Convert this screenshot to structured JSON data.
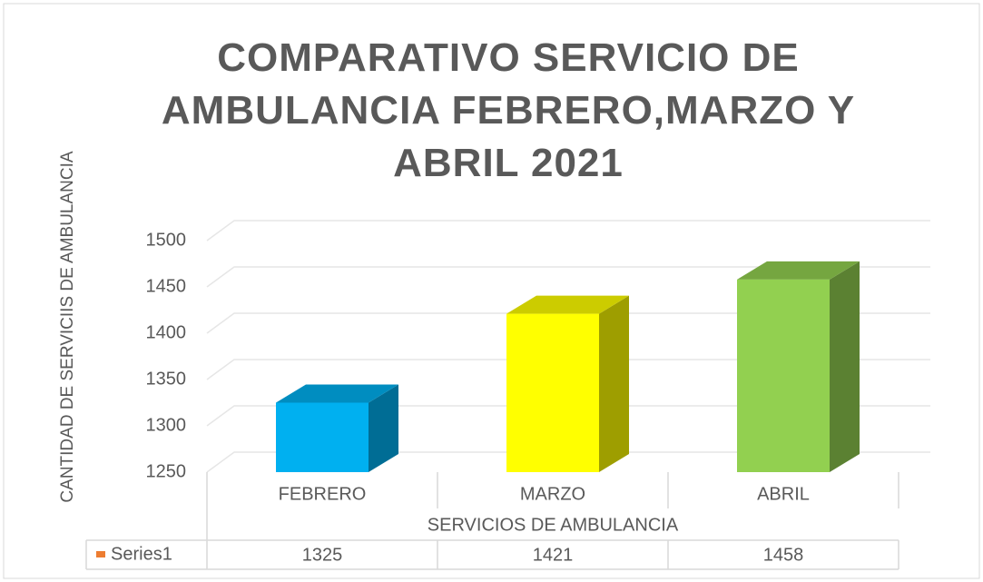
{
  "chart_data": {
    "type": "bar3d",
    "title": "COMPARATIVO SERVICIO DE AMBULANCIA FEBRERO,MARZO Y ABRIL 2021",
    "x_label": "SERVICIOS DE AMBULANCIA",
    "y_label": "CANTIDAD DE SERVICIIS DE AMBULANCIA",
    "categories": [
      "FEBRERO",
      "MARZO",
      "ABRIL"
    ],
    "series": [
      {
        "name": "Series1",
        "color": "#ed7d31",
        "values": [
          1325,
          1421,
          1458
        ],
        "point_colors": [
          "#00b0f0",
          "#ffff00",
          "#92d050"
        ]
      }
    ],
    "ylim": [
      1250,
      1500
    ],
    "yticks": [
      1250,
      1300,
      1350,
      1400,
      1450,
      1500
    ],
    "grid": true,
    "data_table": true
  }
}
